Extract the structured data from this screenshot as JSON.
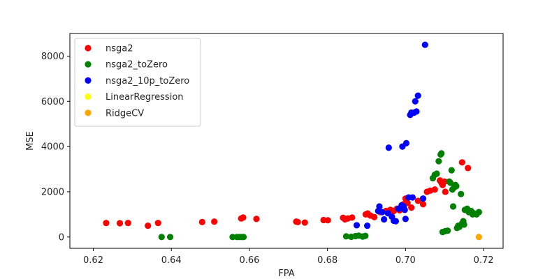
{
  "chart_data": {
    "type": "scatter",
    "xlabel": "FPA",
    "ylabel": "MSE",
    "xlim": [
      0.614,
      0.725
    ],
    "ylim": [
      -500,
      9000
    ],
    "x_ticks": [
      0.62,
      0.64,
      0.66,
      0.68,
      0.7,
      0.72
    ],
    "x_tick_labels": [
      "0.62",
      "0.64",
      "0.66",
      "0.68",
      "0.70",
      "0.72"
    ],
    "y_ticks": [
      0,
      2000,
      4000,
      6000,
      8000
    ],
    "y_tick_labels": [
      "0",
      "2000",
      "4000",
      "6000",
      "8000"
    ],
    "grid": false,
    "legend_position": "top-left",
    "series": [
      {
        "name": "nsga2",
        "color": "#ff0000",
        "points": [
          [
            0.6233,
            620
          ],
          [
            0.6268,
            610
          ],
          [
            0.6289,
            620
          ],
          [
            0.634,
            500
          ],
          [
            0.6366,
            620
          ],
          [
            0.6479,
            660
          ],
          [
            0.651,
            680
          ],
          [
            0.6579,
            820
          ],
          [
            0.6584,
            860
          ],
          [
            0.6618,
            800
          ],
          [
            0.672,
            680
          ],
          [
            0.6724,
            660
          ],
          [
            0.6742,
            640
          ],
          [
            0.679,
            750
          ],
          [
            0.6801,
            740
          ],
          [
            0.684,
            850
          ],
          [
            0.6845,
            780
          ],
          [
            0.6852,
            820
          ],
          [
            0.6863,
            860
          ],
          [
            0.6898,
            1000
          ],
          [
            0.6903,
            1040
          ],
          [
            0.691,
            950
          ],
          [
            0.692,
            880
          ],
          [
            0.6935,
            1100
          ],
          [
            0.695,
            1150
          ],
          [
            0.6961,
            1200
          ],
          [
            0.697,
            1150
          ],
          [
            0.6978,
            1250
          ],
          [
            0.6985,
            1180
          ],
          [
            0.6995,
            1450
          ],
          [
            0.7,
            1700
          ],
          [
            0.7005,
            1500
          ],
          [
            0.7015,
            1300
          ],
          [
            0.7032,
            1600
          ],
          [
            0.7045,
            1450
          ],
          [
            0.7055,
            2000
          ],
          [
            0.7063,
            2050
          ],
          [
            0.7075,
            2100
          ],
          [
            0.7088,
            2500
          ],
          [
            0.7092,
            2400
          ],
          [
            0.7095,
            2300
          ],
          [
            0.71,
            2450
          ],
          [
            0.7102,
            2000
          ],
          [
            0.7145,
            3300
          ],
          [
            0.716,
            3050
          ]
        ]
      },
      {
        "name": "nsga2_toZero",
        "color": "#008000",
        "points": [
          [
            0.6375,
            0
          ],
          [
            0.6397,
            0
          ],
          [
            0.6557,
            0
          ],
          [
            0.6568,
            0
          ],
          [
            0.6574,
            0
          ],
          [
            0.658,
            0
          ],
          [
            0.6585,
            0
          ],
          [
            0.6848,
            30
          ],
          [
            0.6861,
            10
          ],
          [
            0.6872,
            40
          ],
          [
            0.688,
            60
          ],
          [
            0.689,
            20
          ],
          [
            0.6897,
            50
          ],
          [
            0.707,
            2600
          ],
          [
            0.7075,
            2750
          ],
          [
            0.708,
            2800
          ],
          [
            0.7085,
            3350
          ],
          [
            0.709,
            3650
          ],
          [
            0.7092,
            3700
          ],
          [
            0.7095,
            220
          ],
          [
            0.7102,
            260
          ],
          [
            0.7108,
            280
          ],
          [
            0.7112,
            2450
          ],
          [
            0.7115,
            2400
          ],
          [
            0.7118,
            2950
          ],
          [
            0.712,
            2100
          ],
          [
            0.7122,
            1350
          ],
          [
            0.7125,
            2200
          ],
          [
            0.7128,
            2300
          ],
          [
            0.713,
            2250
          ],
          [
            0.7132,
            400
          ],
          [
            0.7135,
            500
          ],
          [
            0.7138,
            450
          ],
          [
            0.7142,
            1900
          ],
          [
            0.7145,
            600
          ],
          [
            0.7148,
            700
          ],
          [
            0.715,
            550
          ],
          [
            0.7152,
            1200
          ],
          [
            0.7158,
            1250
          ],
          [
            0.7162,
            1100
          ],
          [
            0.7168,
            1150
          ],
          [
            0.7172,
            1000
          ],
          [
            0.7175,
            1050
          ],
          [
            0.7182,
            1000
          ],
          [
            0.7188,
            1100
          ]
        ]
      },
      {
        "name": "nsga2_10p_toZero",
        "color": "#0000ff",
        "points": [
          [
            0.6875,
            520
          ],
          [
            0.6902,
            500
          ],
          [
            0.693,
            1150
          ],
          [
            0.6933,
            1350
          ],
          [
            0.694,
            1100
          ],
          [
            0.6945,
            780
          ],
          [
            0.6955,
            1050
          ],
          [
            0.6957,
            3950
          ],
          [
            0.6965,
            900
          ],
          [
            0.697,
            720
          ],
          [
            0.6975,
            700
          ],
          [
            0.6982,
            1250
          ],
          [
            0.6988,
            1300
          ],
          [
            0.699,
            1400
          ],
          [
            0.6992,
            4000
          ],
          [
            0.6995,
            1350
          ],
          [
            0.6998,
            1200
          ],
          [
            0.7,
            800
          ],
          [
            0.7002,
            4150
          ],
          [
            0.7008,
            1750
          ],
          [
            0.7012,
            5400
          ],
          [
            0.7015,
            5500
          ],
          [
            0.7018,
            1750
          ],
          [
            0.7022,
            5500
          ],
          [
            0.7025,
            6000
          ],
          [
            0.7028,
            5550
          ],
          [
            0.7032,
            6250
          ],
          [
            0.7045,
            1700
          ],
          [
            0.705,
            8500
          ]
        ]
      },
      {
        "name": "LinearRegression",
        "color": "#ffff00",
        "points": []
      },
      {
        "name": "RidgeCV",
        "color": "#ffa500",
        "points": [
          [
            0.7188,
            0
          ]
        ]
      }
    ]
  }
}
